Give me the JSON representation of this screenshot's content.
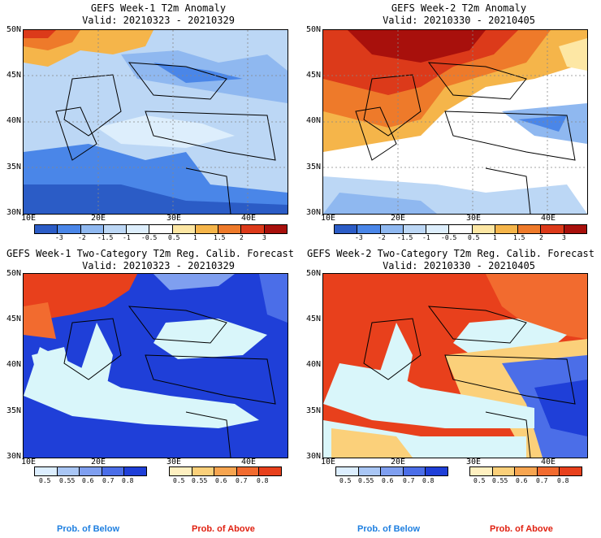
{
  "panels": [
    {
      "title": "GEFS Week-1 T2m Anomaly",
      "valid": "Valid: 20210323 - 20210329",
      "y_labels": [
        "50N",
        "45N",
        "40N",
        "35N",
        "30N"
      ],
      "x_labels": [
        "10E",
        "20E",
        "30E",
        "40E"
      ],
      "colorbar": [
        "-3",
        "-2",
        "-1.5",
        "-1",
        "-0.5",
        "0.5",
        "1",
        "1.5",
        "2",
        "3"
      ]
    },
    {
      "title": "GEFS Week-2 T2m Anomaly",
      "valid": "Valid: 20210330 - 20210405",
      "y_labels": [
        "50N",
        "45N",
        "40N",
        "35N",
        "30N"
      ],
      "x_labels": [
        "10E",
        "20E",
        "30E",
        "40E"
      ],
      "colorbar": [
        "-3",
        "-2",
        "-1.5",
        "-1",
        "-0.5",
        "0.5",
        "1",
        "1.5",
        "2",
        "3"
      ]
    },
    {
      "title": "GEFS Week-1 Two-Category T2m Reg. Calib. Forecast",
      "valid": "Valid: 20210323 - 20210329",
      "y_labels": [
        "50N",
        "45N",
        "40N",
        "35N",
        "30N"
      ],
      "x_labels": [
        "10E",
        "20E",
        "30E",
        "40E"
      ],
      "below_ticks": [
        "0.5",
        "0.55",
        "0.6",
        "0.7",
        "0.8"
      ],
      "above_ticks": [
        "0.5",
        "0.55",
        "0.6",
        "0.7",
        "0.8"
      ]
    },
    {
      "title": "GEFS Week-2 Two-Category T2m Reg. Calib. Forecast",
      "valid": "Valid: 20210330 - 20210405",
      "y_labels": [
        "50N",
        "45N",
        "40N",
        "35N",
        "30N"
      ],
      "x_labels": [
        "10E",
        "20E",
        "30E",
        "40E"
      ],
      "below_ticks": [
        "0.5",
        "0.55",
        "0.6",
        "0.7",
        "0.8"
      ],
      "above_ticks": [
        "0.5",
        "0.55",
        "0.6",
        "0.7",
        "0.8"
      ]
    }
  ],
  "footer": {
    "prob_below": "Prob. of Below",
    "prob_above": "Prob. of Above"
  },
  "colors": {
    "anomaly_scale": [
      "#2b5cc6",
      "#4a86e8",
      "#8fb8f0",
      "#bcd7f5",
      "#ddeefc",
      "#ffffff",
      "#fde7a4",
      "#f5b54a",
      "#ee7a2a",
      "#dc3a1a",
      "#a8100c"
    ],
    "below_scale": [
      "#dceeff",
      "#a9c6f5",
      "#7f9ff0",
      "#4b6ee8",
      "#1f3fd8"
    ],
    "above_scale": [
      "#fff0c0",
      "#fbd07a",
      "#f7a550",
      "#f26b2f",
      "#e8401c"
    ],
    "ocean": "#d9f6fa",
    "below_label": "#1e7fe0",
    "above_label": "#e02010"
  }
}
